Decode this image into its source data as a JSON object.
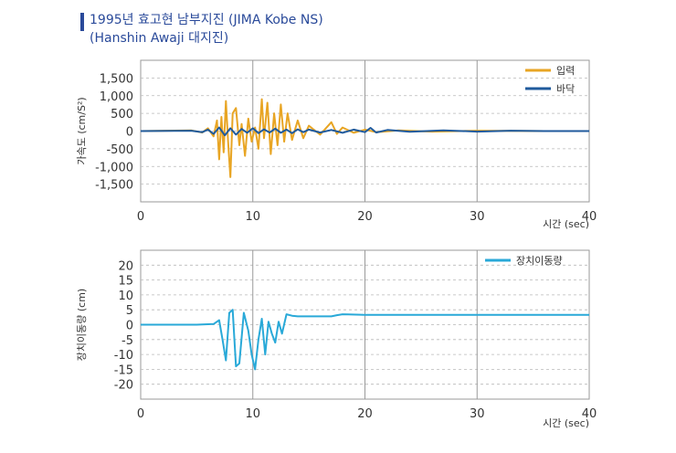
{
  "title": {
    "line1": "1995년 효고현 남부지진 (JIMA Kobe NS)",
    "line2": "(Hanshin Awaji 대지진)",
    "accent_color": "#2a4a9a"
  },
  "chart_data": [
    {
      "type": "line",
      "title": "",
      "xlabel": "시간 (sec)",
      "ylabel": "가속도 (cm/S²)",
      "xlim": [
        0,
        40
      ],
      "ylim": [
        -2000,
        2000
      ],
      "xticks": [
        0,
        10,
        20,
        30,
        40
      ],
      "yticks": [
        1500,
        1000,
        500,
        0,
        -500,
        -1000,
        -1500
      ],
      "ytick_labels": [
        "1,500",
        "1,000",
        "500",
        "0",
        "-500",
        "-1,000",
        "-1,500"
      ],
      "grid": true,
      "legend_position": "top-right",
      "series": [
        {
          "name": "입력",
          "color": "#e8a524",
          "x": [
            0,
            4.5,
            5.5,
            6.0,
            6.5,
            6.8,
            7.0,
            7.2,
            7.4,
            7.6,
            7.8,
            8.0,
            8.2,
            8.5,
            8.8,
            9.0,
            9.3,
            9.6,
            9.9,
            10.2,
            10.5,
            10.8,
            11.0,
            11.3,
            11.6,
            11.9,
            12.2,
            12.5,
            12.8,
            13.1,
            13.5,
            14.0,
            14.5,
            15.0,
            16.0,
            17.0,
            17.5,
            18.0,
            19.0,
            20.0,
            21.0,
            23.0,
            26.0,
            30.0,
            36.0,
            40.0
          ],
          "y": [
            0,
            20,
            -40,
            80,
            -150,
            300,
            -800,
            400,
            -600,
            850,
            -300,
            -1300,
            500,
            650,
            -400,
            200,
            -700,
            350,
            -300,
            100,
            -500,
            900,
            -200,
            800,
            -650,
            500,
            -400,
            750,
            -300,
            500,
            -250,
            300,
            -200,
            150,
            -100,
            250,
            -80,
            100,
            -50,
            40,
            -30,
            20,
            -15,
            10,
            0,
            0
          ]
        },
        {
          "name": "바닥",
          "color": "#1f5a9c",
          "x": [
            0,
            4.5,
            5.5,
            6.0,
            6.5,
            7.0,
            7.5,
            8.0,
            8.5,
            9.0,
            9.5,
            10.0,
            10.5,
            11.0,
            11.5,
            12.0,
            12.5,
            13.0,
            13.5,
            14.0,
            14.5,
            15.0,
            16.0,
            17.0,
            18.0,
            19.0,
            20.0,
            20.5,
            21.0,
            22.0,
            24.0,
            27.0,
            30.0,
            33.0,
            36.0,
            40.0
          ],
          "y": [
            0,
            10,
            -30,
            40,
            -80,
            100,
            -120,
            80,
            -100,
            60,
            -50,
            80,
            -60,
            50,
            -40,
            70,
            -50,
            40,
            -60,
            50,
            -30,
            40,
            -40,
            30,
            -50,
            40,
            -30,
            90,
            -40,
            30,
            -20,
            20,
            -15,
            10,
            0,
            0
          ]
        }
      ]
    },
    {
      "type": "line",
      "title": "",
      "xlabel": "시간 (sec)",
      "ylabel": "장치이동량 (cm)",
      "xlim": [
        0,
        40
      ],
      "ylim": [
        -25,
        25
      ],
      "xticks": [
        0,
        10,
        20,
        30,
        40
      ],
      "yticks": [
        20,
        15,
        10,
        5,
        0,
        -5,
        -10,
        -15,
        -20
      ],
      "ytick_labels": [
        "20",
        "15",
        "10",
        "5",
        "0",
        "-5",
        "-10",
        "-15",
        "-20"
      ],
      "grid": true,
      "legend_position": "top-right",
      "series": [
        {
          "name": "장치이동량",
          "color": "#29a9d8",
          "x": [
            0,
            5.0,
            6.5,
            7.0,
            7.3,
            7.6,
            7.9,
            8.2,
            8.5,
            8.8,
            9.2,
            9.6,
            9.9,
            10.2,
            10.5,
            10.8,
            11.1,
            11.4,
            11.7,
            12.0,
            12.3,
            12.6,
            13.0,
            13.5,
            14.0,
            17.0,
            17.5,
            18.0,
            20.0,
            25.0,
            30.0,
            35.0,
            40.0
          ],
          "y": [
            0,
            0,
            0.2,
            1.5,
            -5,
            -12,
            4,
            5,
            -14,
            -13,
            4,
            -2,
            -10,
            -15,
            -5,
            2,
            -10,
            1,
            -3,
            -6,
            1,
            -3,
            3.5,
            3,
            2.8,
            2.8,
            3.2,
            3.5,
            3.3,
            3.3,
            3.3,
            3.3,
            3.3
          ]
        }
      ]
    }
  ]
}
